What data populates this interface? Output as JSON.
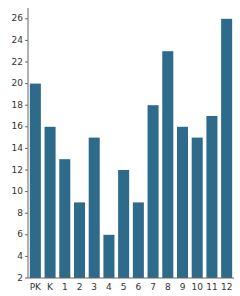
{
  "chart_data": {
    "type": "bar",
    "categories": [
      "PK",
      "K",
      "1",
      "2",
      "3",
      "4",
      "5",
      "6",
      "7",
      "8",
      "9",
      "10",
      "11",
      "12"
    ],
    "values": [
      20,
      16,
      13,
      9,
      15,
      6,
      12,
      9,
      18,
      23,
      16,
      15,
      17,
      26
    ],
    "color": "#2e6b8a",
    "ylim": [
      2,
      27
    ],
    "yticks": [
      2,
      4,
      6,
      8,
      10,
      12,
      14,
      16,
      18,
      20,
      22,
      24,
      26
    ],
    "grid": false
  }
}
